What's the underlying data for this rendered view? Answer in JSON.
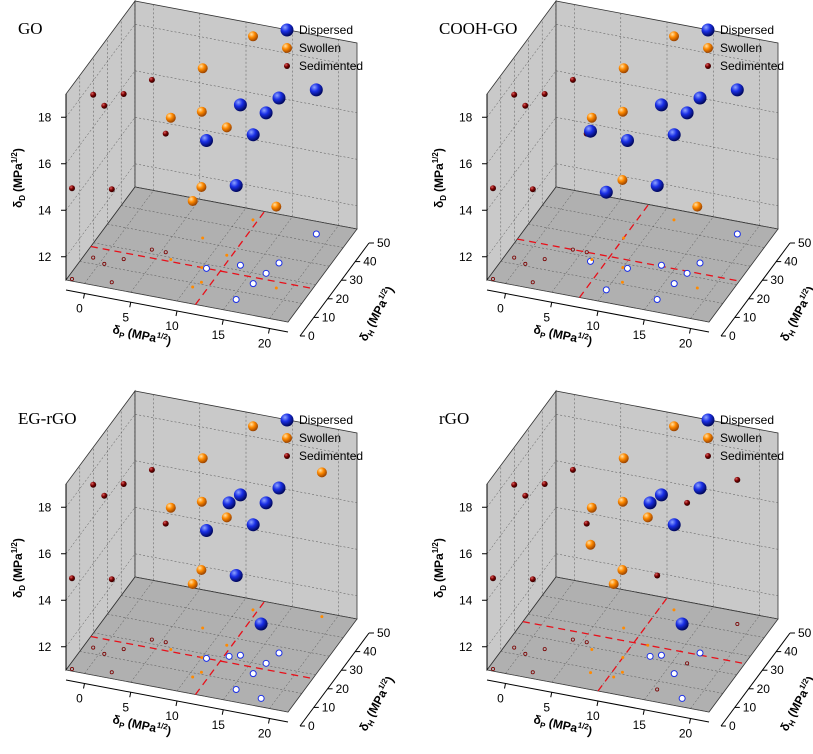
{
  "figure": {
    "colors": {
      "dispersed": "#1a2fe6",
      "swollen": "#ff8a00",
      "sedimented": "#7a0000",
      "wall": "#c9c9c9",
      "floor": "#b0b0b0",
      "threshold_line": "#e8101a"
    }
  },
  "chart_data": [
    {
      "type": "scatter3d",
      "title": "GO",
      "x_label": "δP (MPa1/2)",
      "y_label": "δH (MPa1/2)",
      "z_label": "δD (MPa1/2)",
      "axis_labels": {
        "x_main": "δ",
        "x_sub": "P",
        "x_unit": "(MPa",
        "x_exp": "1/2",
        "y_main": "δ",
        "y_sub": "H",
        "y_unit": "(MPa",
        "y_exp": "1/2",
        "z_main": "δ",
        "z_sub": "D",
        "z_unit": "(MPa",
        "z_exp": "1/2",
        "close": ")"
      },
      "x_range": [
        -2,
        22
      ],
      "y_range": [
        0,
        50
      ],
      "z_range": [
        11,
        19
      ],
      "x_ticks": [
        "0",
        "5",
        "10",
        "15",
        "20"
      ],
      "y_ticks": [
        "0",
        "10",
        "20",
        "30",
        "40",
        "50"
      ],
      "z_ticks": [
        "12",
        "14",
        "16",
        "18"
      ],
      "legend": [
        "Dispersed",
        "Swollen",
        "Sedimented"
      ],
      "thresholds": {
        "x": 12,
        "y": 18
      },
      "series": [
        {
          "name": "Dispersed",
          "points": [
            [
              13.5,
              22.5,
              17.9
            ],
            [
              16.5,
              21.0,
              17.9
            ],
            [
              16.0,
              15.0,
              17.4
            ],
            [
              17.0,
              27.0,
              18.1
            ],
            [
              10.5,
              18.0,
              16.5
            ],
            [
              15.5,
              6.0,
              15.9
            ],
            [
              18.5,
              44.0,
              17.2
            ]
          ]
        },
        {
          "name": "Swollen",
          "points": [
            [
              11.5,
              45.0,
              18.9
            ],
            [
              8.0,
              32.0,
              18.3
            ],
            [
              10.0,
              18.0,
              17.7
            ],
            [
              6.5,
              19.0,
              17.1
            ],
            [
              11.5,
              26.0,
              16.5
            ],
            [
              11.0,
              11.0,
              15.1
            ],
            [
              10.5,
              8.0,
              14.7
            ],
            [
              18.5,
              15.0,
              14.5
            ]
          ]
        },
        {
          "name": "Sedimented",
          "points": [
            [
              -1.0,
              13.0,
              18.0
            ],
            [
              0.5,
              11.0,
              17.8
            ],
            [
              2.0,
              15.0,
              18.1
            ],
            [
              4.0,
              22.0,
              18.3
            ],
            [
              5.5,
              22.0,
              16.1
            ],
            [
              -1.5,
              1.0,
              14.9
            ],
            [
              2.5,
              3.0,
              15.0
            ]
          ]
        }
      ]
    },
    {
      "type": "scatter3d",
      "title": "COOH-GO",
      "x_label": "δP (MPa1/2)",
      "y_label": "δH (MPa1/2)",
      "z_label": "δD (MPa1/2)",
      "axis_labels": {
        "x_main": "δ",
        "x_sub": "P",
        "x_unit": "(MPa",
        "x_exp": "1/2",
        "y_main": "δ",
        "y_sub": "H",
        "y_unit": "(MPa",
        "y_exp": "1/2",
        "z_main": "δ",
        "z_sub": "D",
        "z_unit": "(MPa",
        "z_exp": "1/2",
        "close": ")"
      },
      "x_range": [
        -2,
        22
      ],
      "y_range": [
        0,
        50
      ],
      "z_range": [
        11,
        19
      ],
      "x_ticks": [
        "0",
        "5",
        "10",
        "15",
        "20"
      ],
      "y_ticks": [
        "0",
        "10",
        "20",
        "30",
        "40",
        "50"
      ],
      "z_ticks": [
        "12",
        "14",
        "16",
        "18"
      ],
      "legend": [
        "Dispersed",
        "Swollen",
        "Sedimented"
      ],
      "thresholds": {
        "x": 8,
        "y": 22
      },
      "series": [
        {
          "name": "Dispersed",
          "points": [
            [
              13.5,
              22.5,
              17.9
            ],
            [
              16.5,
              21.0,
              17.9
            ],
            [
              16.0,
              15.0,
              17.4
            ],
            [
              17.0,
              27.0,
              18.1
            ],
            [
              10.5,
              18.0,
              16.5
            ],
            [
              15.5,
              6.0,
              15.9
            ],
            [
              18.5,
              44.0,
              17.2
            ],
            [
              6.5,
              18.0,
              16.6
            ],
            [
              10.0,
              6.0,
              15.2
            ]
          ]
        },
        {
          "name": "Swollen",
          "points": [
            [
              11.5,
              45.0,
              18.9
            ],
            [
              8.0,
              32.0,
              18.3
            ],
            [
              10.0,
              18.0,
              17.7
            ],
            [
              6.5,
              19.0,
              17.1
            ],
            [
              11.0,
              11.0,
              15.4
            ],
            [
              18.5,
              15.0,
              14.5
            ]
          ]
        },
        {
          "name": "Sedimented",
          "points": [
            [
              -1.0,
              13.0,
              18.0
            ],
            [
              0.5,
              11.0,
              17.8
            ],
            [
              2.0,
              15.0,
              18.1
            ],
            [
              4.0,
              22.0,
              18.3
            ],
            [
              5.5,
              22.0,
              16.1
            ],
            [
              -1.5,
              1.0,
              14.9
            ],
            [
              2.5,
              3.0,
              15.0
            ]
          ]
        }
      ]
    },
    {
      "type": "scatter3d",
      "title": "EG-rGO",
      "x_label": "δP (MPa1/2)",
      "y_label": "δH (MPa1/2)",
      "z_label": "δD (MPa1/2)",
      "axis_labels": {
        "x_main": "δ",
        "x_sub": "P",
        "x_unit": "(MPa",
        "x_exp": "1/2",
        "y_main": "δ",
        "y_sub": "H",
        "y_unit": "(MPa",
        "y_exp": "1/2",
        "z_main": "δ",
        "z_sub": "D",
        "z_unit": "(MPa",
        "z_exp": "1/2",
        "close": ")"
      },
      "x_range": [
        -2,
        22
      ],
      "y_range": [
        0,
        50
      ],
      "z_range": [
        11,
        19
      ],
      "x_ticks": [
        "0",
        "5",
        "10",
        "15",
        "20"
      ],
      "y_ticks": [
        "0",
        "10",
        "20",
        "30",
        "40",
        "50"
      ],
      "z_ticks": [
        "12",
        "14",
        "16",
        "18"
      ],
      "legend": [
        "Dispersed",
        "Swollen",
        "Sedimented"
      ],
      "thresholds": {
        "x": 12,
        "y": 18
      },
      "series": [
        {
          "name": "Dispersed",
          "points": [
            [
              12.5,
              21.0,
              17.6
            ],
            [
              13.5,
              22.5,
              17.9
            ],
            [
              16.5,
              21.0,
              17.9
            ],
            [
              16.0,
              15.0,
              17.4
            ],
            [
              17.0,
              27.0,
              18.1
            ],
            [
              10.5,
              18.0,
              16.5
            ],
            [
              15.5,
              6.0,
              15.9
            ],
            [
              18.5,
              4.0,
              14.2
            ]
          ]
        },
        {
          "name": "Swollen",
          "points": [
            [
              11.5,
              45.0,
              18.9
            ],
            [
              8.0,
              32.0,
              18.3
            ],
            [
              10.0,
              18.0,
              17.7
            ],
            [
              6.5,
              19.0,
              17.1
            ],
            [
              11.5,
              26.0,
              16.5
            ],
            [
              11.0,
              11.0,
              15.4
            ],
            [
              10.5,
              8.0,
              15.0
            ],
            [
              18.5,
              48.0,
              17.2
            ]
          ]
        },
        {
          "name": "Sedimented",
          "points": [
            [
              -1.0,
              13.0,
              18.0
            ],
            [
              0.5,
              11.0,
              17.8
            ],
            [
              2.0,
              15.0,
              18.1
            ],
            [
              4.0,
              22.0,
              18.3
            ],
            [
              5.5,
              22.0,
              16.1
            ],
            [
              -1.5,
              1.0,
              14.9
            ],
            [
              2.5,
              3.0,
              15.0
            ]
          ]
        }
      ]
    },
    {
      "type": "scatter3d",
      "title": "rGO",
      "x_label": "δP (MPa1/2)",
      "y_label": "δH (MPa1/2)",
      "z_label": "δD (MPa1/2)",
      "axis_labels": {
        "x_main": "δ",
        "x_sub": "P",
        "x_unit": "(MPa",
        "x_exp": "1/2",
        "y_main": "δ",
        "y_sub": "H",
        "y_unit": "(MPa",
        "y_exp": "1/2",
        "z_main": "δ",
        "z_sub": "D",
        "z_unit": "(MPa",
        "z_exp": "1/2",
        "close": ")"
      },
      "x_range": [
        -2,
        22
      ],
      "y_range": [
        0,
        50
      ],
      "z_range": [
        11,
        19
      ],
      "x_ticks": [
        "0",
        "5",
        "10",
        "15",
        "20"
      ],
      "y_ticks": [
        "0",
        "10",
        "20",
        "30",
        "40",
        "50"
      ],
      "z_ticks": [
        "12",
        "14",
        "16",
        "18"
      ],
      "legend": [
        "Dispersed",
        "Swollen",
        "Sedimented"
      ],
      "thresholds": {
        "x": 10,
        "y": 26
      },
      "series": [
        {
          "name": "Dispersed",
          "points": [
            [
              12.5,
              21.0,
              17.6
            ],
            [
              13.5,
              22.5,
              17.9
            ],
            [
              16.0,
              15.0,
              17.4
            ],
            [
              17.0,
              27.0,
              18.1
            ],
            [
              18.5,
              4.0,
              14.2
            ]
          ]
        },
        {
          "name": "Swollen",
          "points": [
            [
              11.5,
              45.0,
              18.9
            ],
            [
              8.0,
              32.0,
              18.3
            ],
            [
              10.0,
              18.0,
              17.7
            ],
            [
              6.5,
              19.0,
              17.1
            ],
            [
              11.5,
              26.0,
              16.5
            ],
            [
              8.0,
              8.0,
              16.5
            ],
            [
              11.0,
              11.0,
              15.4
            ],
            [
              10.5,
              8.0,
              15.0
            ]
          ]
        },
        {
          "name": "Sedimented",
          "points": [
            [
              -1.0,
              13.0,
              18.0
            ],
            [
              0.5,
              11.0,
              17.8
            ],
            [
              2.0,
              15.0,
              18.1
            ],
            [
              4.0,
              22.0,
              18.3
            ],
            [
              5.5,
              22.0,
              16.1
            ],
            [
              -1.5,
              1.0,
              14.9
            ],
            [
              2.5,
              3.0,
              15.0
            ],
            [
              16.5,
              21.0,
              17.9
            ],
            [
              18.5,
              44.0,
              17.2
            ],
            [
              15.5,
              6.0,
              15.9
            ]
          ]
        }
      ]
    }
  ]
}
